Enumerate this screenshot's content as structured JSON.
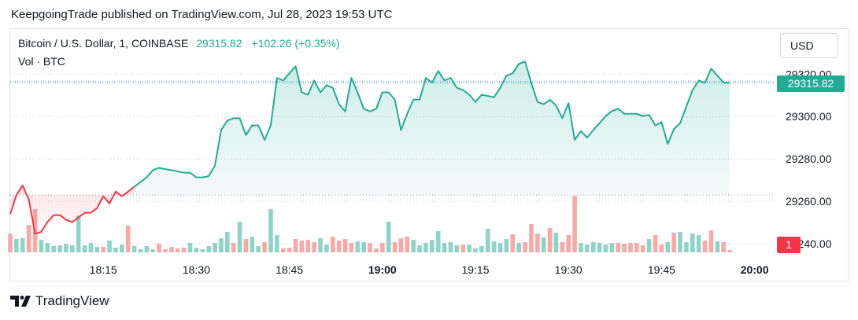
{
  "header": {
    "publish_text": "KeepgoingTrade published on TradingView.com, Jul 28, 2023 19:53 UTC"
  },
  "legend": {
    "symbol": "Bitcoin / U.S. Dollar, 1, COINBASE",
    "last": "29315.82",
    "change": "+102.26 (+0.35%)",
    "volume_label": "Vol · BTC"
  },
  "toolbar": {
    "currency": "USD"
  },
  "price_tag": "29315.82",
  "volume_tag": "1",
  "brand": {
    "name": "TradingView"
  },
  "colors": {
    "up": "#22ab94",
    "down": "#f23645",
    "area": "#22ab94",
    "vol_up": "#8fd3c7",
    "vol_down": "#f7a9a7"
  },
  "chart_data": {
    "type": "line",
    "title": "Bitcoin / U.S. Dollar, 1, COINBASE",
    "x_ticks": [
      {
        "label": "18:15",
        "minute": 15,
        "bold": false
      },
      {
        "label": "18:30",
        "minute": 30,
        "bold": false
      },
      {
        "label": "18:45",
        "minute": 45,
        "bold": false
      },
      {
        "label": "19:00",
        "minute": 60,
        "bold": true
      },
      {
        "label": "19:15",
        "minute": 75,
        "bold": false
      },
      {
        "label": "19:30",
        "minute": 90,
        "bold": false
      },
      {
        "label": "19:45",
        "minute": 105,
        "bold": false
      },
      {
        "label": "20:00",
        "minute": 120,
        "bold": true
      }
    ],
    "y_ticks": [
      "29320.00",
      "29300.00",
      "29280.00",
      "29260.00",
      "29240.00"
    ],
    "y_range": [
      29240,
      29320
    ],
    "series": [
      {
        "values": [
          29254.0,
          29263.0,
          29267.5,
          29260.8,
          29244.7,
          29245.6,
          29250.2,
          29253.5,
          29253.5,
          29251.3,
          29250.2,
          29252.4,
          29254.6,
          29254.6,
          29256.8,
          29262.4,
          29259.0,
          29264.6,
          29262.4,
          29264.6,
          29266.9,
          29269.1,
          29271.3,
          29274.7,
          29275.8,
          29275.2,
          29274.7,
          29274.1,
          29273.5,
          29273.5,
          29271.3,
          29271.3,
          29271.9,
          29276.9,
          29293.6,
          29298.1,
          29299.2,
          29299.2,
          29291.3,
          29295.8,
          29295.8,
          29289.0,
          29295.8,
          29318.2,
          29317.0,
          29320.4,
          29323.7,
          29311.4,
          29310.3,
          29317.0,
          29311.4,
          29314.8,
          29313.6,
          29305.8,
          29302.4,
          29318.2,
          29311.4,
          29303.6,
          29302.4,
          29303.6,
          29311.4,
          29311.4,
          29308.0,
          29293.6,
          29301.3,
          29308.0,
          29308.0,
          29318.2,
          29316.0,
          29321.5,
          29317.0,
          29318.2,
          29313.6,
          29312.5,
          29310.3,
          29306.9,
          29310.3,
          29309.7,
          29309.1,
          29313.6,
          29319.3,
          29320.4,
          29324.8,
          29325.9,
          29315.9,
          29306.9,
          29305.8,
          29307.9,
          29305.2,
          29299.2,
          29306.3,
          29289.0,
          29293.1,
          29290.1,
          29293.6,
          29296.9,
          29300.2,
          29302.6,
          29303.6,
          29301.3,
          29301.3,
          29301.3,
          29300.2,
          29300.8,
          29295.8,
          29297.4,
          29287.0,
          29294.1,
          29296.9,
          29304.7,
          29312.5,
          29317.0,
          29315.9,
          29322.6,
          29319.3,
          29316.0,
          29315.8
        ]
      }
    ],
    "volume": {
      "values": [
        0.24,
        0.17,
        0.18,
        0.35,
        0.55,
        0.16,
        0.12,
        0.08,
        0.09,
        0.11,
        0.09,
        0.47,
        0.09,
        0.12,
        0.07,
        0.07,
        0.15,
        0.06,
        0.1,
        0.34,
        0.08,
        0.04,
        0.08,
        0.04,
        0.11,
        0.04,
        0.07,
        0.05,
        0.06,
        0.12,
        0.06,
        0.04,
        0.08,
        0.12,
        0.18,
        0.26,
        0.12,
        0.39,
        0.17,
        0.2,
        0.08,
        0.13,
        0.55,
        0.22,
        0.05,
        0.06,
        0.17,
        0.15,
        0.16,
        0.13,
        0.18,
        0.1,
        0.2,
        0.15,
        0.17,
        0.12,
        0.14,
        0.13,
        0.12,
        0.05,
        0.12,
        0.39,
        0.13,
        0.18,
        0.2,
        0.16,
        0.09,
        0.12,
        0.16,
        0.27,
        0.12,
        0.13,
        0.09,
        0.1,
        0.1,
        0.05,
        0.08,
        0.3,
        0.14,
        0.12,
        0.17,
        0.23,
        0.12,
        0.13,
        0.36,
        0.24,
        0.19,
        0.31,
        0.25,
        0.13,
        0.22,
        0.72,
        0.12,
        0.1,
        0.13,
        0.12,
        0.1,
        0.12,
        0.12,
        0.11,
        0.12,
        0.12,
        0.09,
        0.17,
        0.22,
        0.1,
        0.13,
        0.25,
        0.26,
        0.13,
        0.24,
        0.22,
        0.15,
        0.28,
        0.14,
        0.13,
        0.03
      ],
      "up": [
        false,
        true,
        true,
        false,
        false,
        true,
        true,
        true,
        true,
        true,
        true,
        true,
        true,
        true,
        true,
        false,
        true,
        true,
        true,
        false,
        true,
        true,
        true,
        true,
        false,
        false,
        false,
        false,
        false,
        true,
        true,
        true,
        true,
        true,
        true,
        true,
        false,
        true,
        false,
        true,
        true,
        false,
        true,
        true,
        false,
        false,
        false,
        false,
        false,
        false,
        true,
        true,
        false,
        false,
        false,
        false,
        true,
        true,
        false,
        false,
        false,
        true,
        false,
        false,
        false,
        true,
        true,
        true,
        true,
        true,
        true,
        true,
        true,
        false,
        true,
        true,
        true,
        true,
        true,
        true,
        true,
        false,
        true,
        false,
        false,
        false,
        true,
        false,
        true,
        false,
        false,
        false,
        true,
        true,
        true,
        true,
        true,
        true,
        false,
        false,
        false,
        false,
        false,
        true,
        false,
        false,
        true,
        false,
        true,
        true,
        true,
        true,
        false,
        false,
        true,
        false,
        false
      ]
    },
    "grid": true,
    "last_price_line": 29315.82
  }
}
